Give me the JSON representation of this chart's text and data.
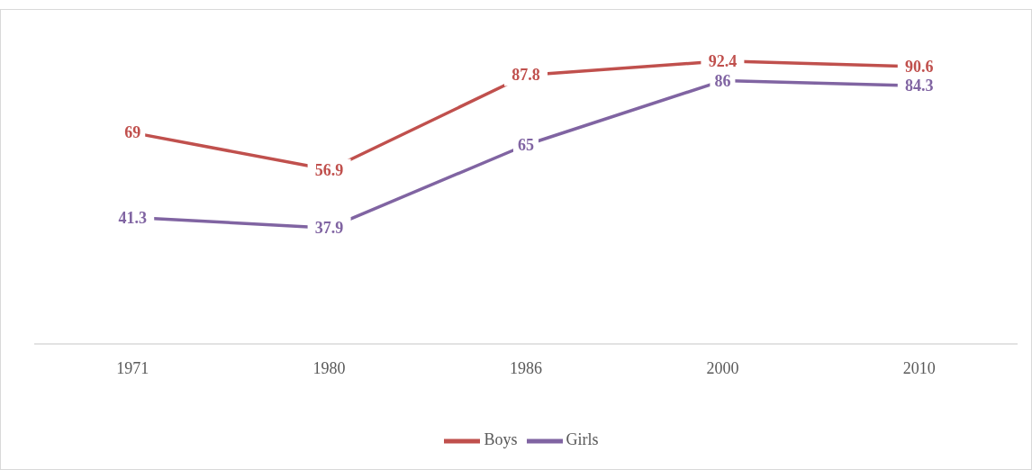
{
  "chart_data": {
    "type": "line",
    "categories": [
      "1971",
      "1980",
      "1986",
      "2000",
      "2010"
    ],
    "series": [
      {
        "name": "Boys",
        "color": "#c0504d",
        "values": [
          69,
          56.9,
          87.8,
          92.4,
          90.6
        ]
      },
      {
        "name": "Girls",
        "color": "#8064a2",
        "values": [
          41.3,
          37.9,
          65,
          86,
          84.3
        ]
      }
    ],
    "tick_labels": "x",
    "data_labels": true,
    "legend": "bottom",
    "grid": false,
    "line_style": "solid"
  }
}
